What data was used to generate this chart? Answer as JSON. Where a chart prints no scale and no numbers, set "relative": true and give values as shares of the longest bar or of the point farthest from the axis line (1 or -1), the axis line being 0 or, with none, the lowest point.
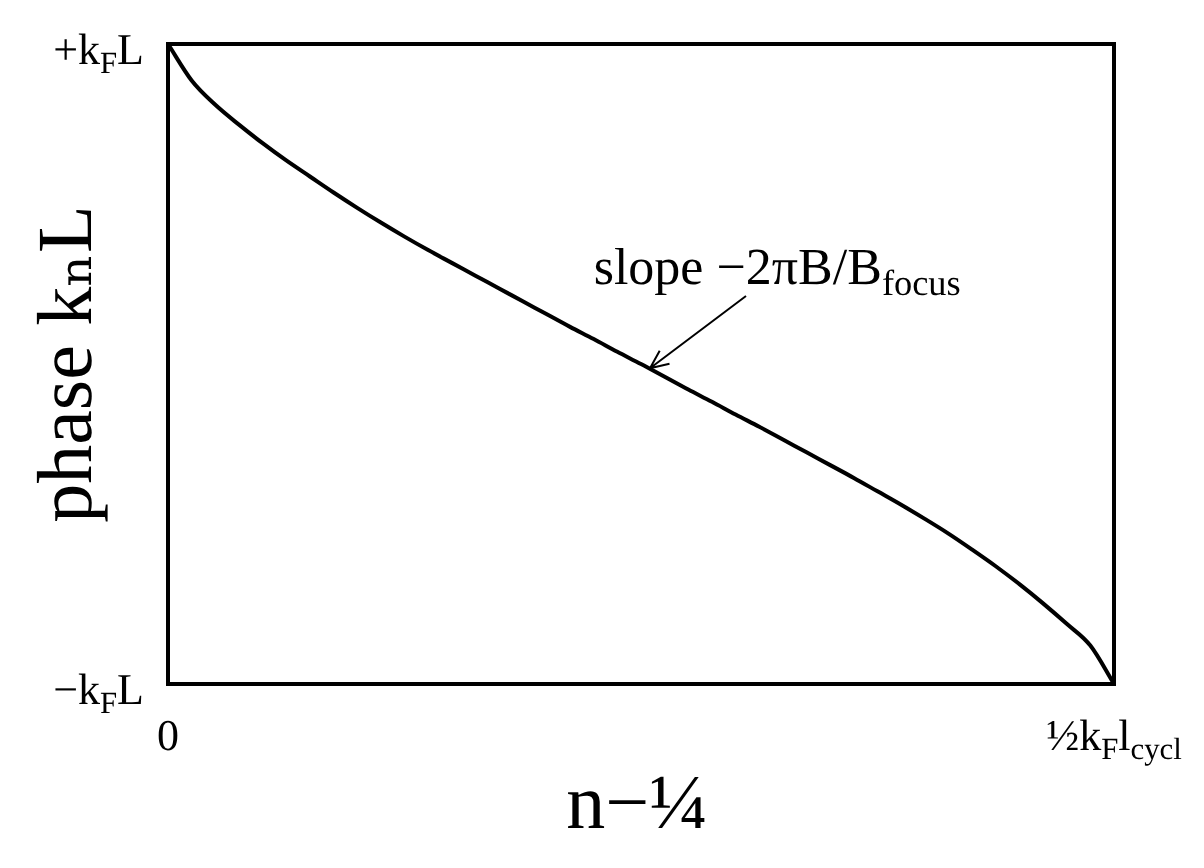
{
  "chart_data": {
    "type": "line",
    "relative": true,
    "xlabel": "n−¼",
    "ylabel": "phase kₙL",
    "categories": [
      "0",
      null,
      null,
      null,
      null,
      null,
      null,
      null,
      null,
      null,
      null,
      null,
      null,
      null,
      null,
      null,
      null,
      null,
      null,
      null,
      null,
      null,
      null,
      null,
      null,
      null,
      null,
      null,
      null,
      null,
      null,
      null,
      null,
      null,
      null,
      null,
      null,
      null,
      null,
      null,
      "½k$_{F}$l$_{cycl}$"
    ],
    "series": [
      {
        "color": "#000000",
        "values": [
          1,
          0.943,
          0.905,
          0.874,
          0.845,
          0.818,
          0.793,
          0.768,
          0.744,
          0.721,
          0.699,
          0.678,
          0.658,
          0.638,
          0.618,
          0.598,
          0.578,
          0.558,
          0.539,
          0.519,
          0.5,
          0.48,
          0.46,
          0.441,
          0.421,
          0.402,
          0.382,
          0.362,
          0.342,
          0.322,
          0.301,
          0.28,
          0.258,
          0.235,
          0.21,
          0.184,
          0.156,
          0.126,
          0.094,
          0.06,
          0
        ]
      }
    ],
    "annotations": [
      "+k$_{F}$L",
      "−k$_{F}$L",
      "slope −2πB/B$_{focus}$"
    ],
    "legend": false,
    "marker": "none",
    "line_style": "solid"
  }
}
